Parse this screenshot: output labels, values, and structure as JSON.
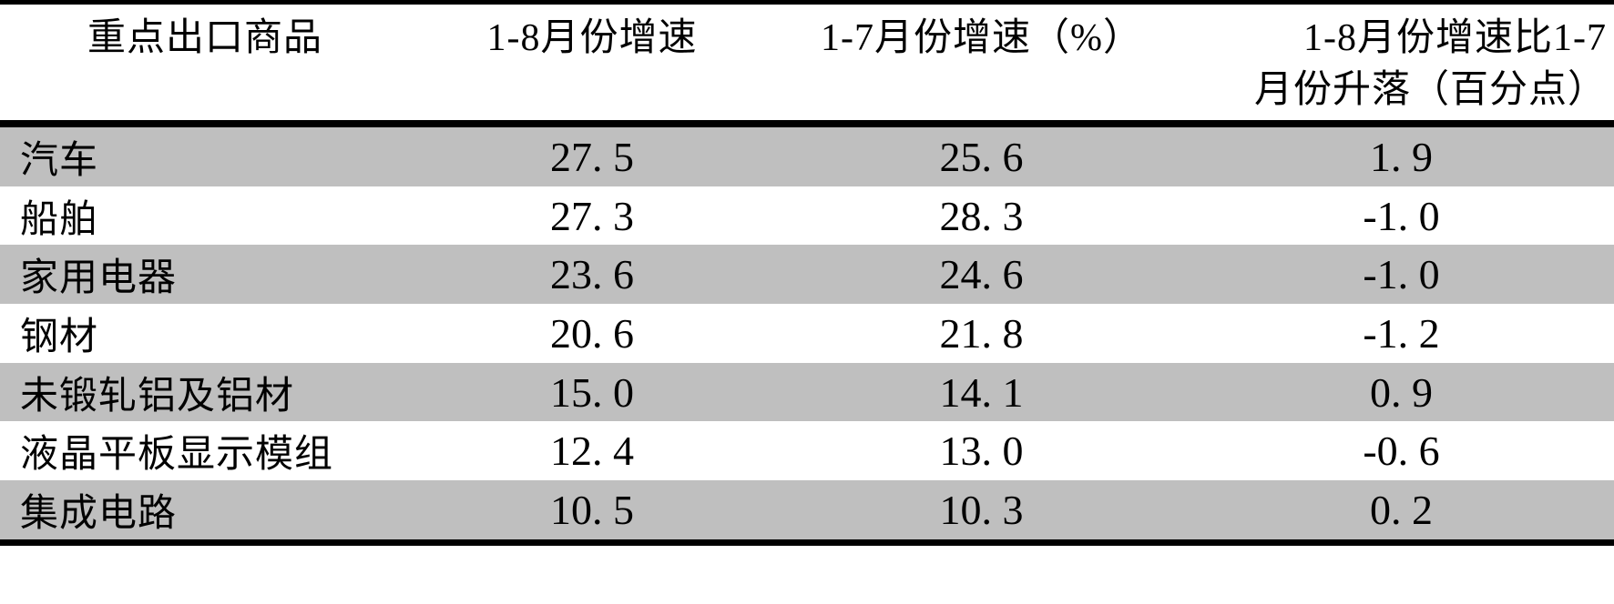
{
  "colors": {
    "background": "#ffffff",
    "text": "#000000",
    "border": "#000000",
    "row_shade": "#bfbfbf"
  },
  "table": {
    "headers": {
      "commodity": "重点出口商品",
      "growth_jan_aug": "1-8月份增速",
      "growth_jan_jul": "1-7月份增速（%）",
      "change_line1": "1-8月份增速比1-7",
      "change_line2": "月份升落（百分点）"
    },
    "rows": [
      {
        "name": "汽车",
        "v18": "27. 5",
        "v17": "25. 6",
        "diff": "1. 9"
      },
      {
        "name": "船舶",
        "v18": "27. 3",
        "v17": "28. 3",
        "diff": "-1. 0"
      },
      {
        "name": "家用电器",
        "v18": "23. 6",
        "v17": "24. 6",
        "diff": "-1. 0"
      },
      {
        "name": "钢材",
        "v18": "20. 6",
        "v17": "21. 8",
        "diff": "-1. 2"
      },
      {
        "name": "未锻轧铝及铝材",
        "v18": "15. 0",
        "v17": "14. 1",
        "diff": "0. 9"
      },
      {
        "name": "液晶平板显示模组",
        "v18": "12. 4",
        "v17": "13. 0",
        "diff": "-0. 6"
      },
      {
        "name": "集成电路",
        "v18": "10. 5",
        "v17": "10. 3",
        "diff": "0. 2"
      }
    ]
  },
  "chart_data": {
    "type": "table",
    "columns": [
      "重点出口商品",
      "1-8月份增速",
      "1-7月份增速（%）",
      "1-8月份增速比1-7月份升落（百分点）"
    ],
    "rows": [
      [
        "汽车",
        27.5,
        25.6,
        1.9
      ],
      [
        "船舶",
        27.3,
        28.3,
        -1.0
      ],
      [
        "家用电器",
        23.6,
        24.6,
        -1.0
      ],
      [
        "钢材",
        20.6,
        21.8,
        -1.2
      ],
      [
        "未锻轧铝及铝材",
        15.0,
        14.1,
        0.9
      ],
      [
        "液晶平板显示模组",
        12.4,
        13.0,
        -0.6
      ],
      [
        "集成电路",
        10.5,
        10.3,
        0.2
      ]
    ],
    "layout": {
      "shaded_row_indices": [
        0,
        2,
        4,
        6
      ],
      "shade_color": "#bfbfbf",
      "borders": "horizontal-only",
      "header_column4_wraps_two_lines": true
    }
  }
}
